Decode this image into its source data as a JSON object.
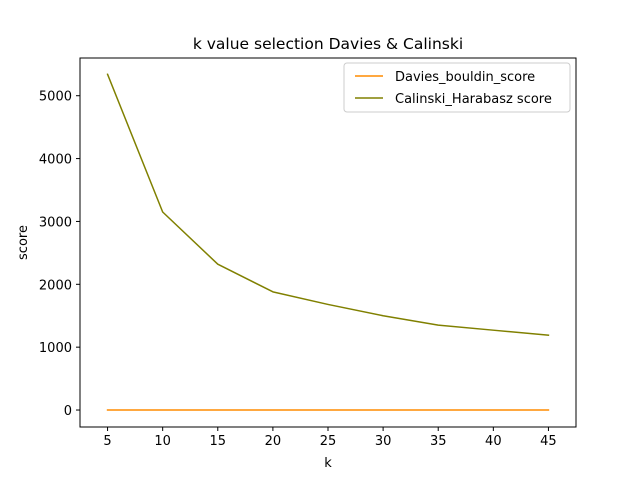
{
  "chart_data": {
    "type": "line",
    "title": "k value selection Davies & Calinski",
    "xlabel": "k",
    "ylabel": "score",
    "x": [
      5,
      10,
      15,
      20,
      25,
      30,
      35,
      40,
      45
    ],
    "xticks": [
      5,
      10,
      15,
      20,
      25,
      30,
      35,
      40,
      45
    ],
    "yticks": [
      0,
      1000,
      2000,
      3000,
      4000,
      5000
    ],
    "xlim": [
      2.5,
      47.5
    ],
    "ylim": [
      -270,
      5600
    ],
    "grid": false,
    "legend_position": "top-right",
    "series": [
      {
        "name": "Davies_bouldin_score",
        "color": "#ff8c00",
        "values": [
          1.2,
          1.1,
          1.0,
          1.0,
          0.9,
          0.9,
          0.9,
          0.8,
          0.8
        ]
      },
      {
        "name": "Calinski_Harabasz score",
        "color": "#808000",
        "values": [
          5340,
          3150,
          2320,
          1880,
          1680,
          1500,
          1350,
          1270,
          1190
        ]
      }
    ]
  }
}
